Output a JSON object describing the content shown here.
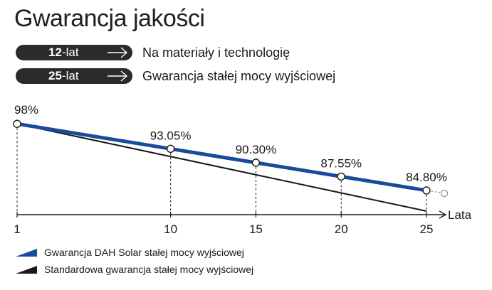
{
  "title": "Gwarancja jakości",
  "warranties": [
    {
      "years": "12",
      "suffix": "-lat",
      "description": "Na materiały i technologię"
    },
    {
      "years": "25",
      "suffix": "-lat",
      "description": "Gwarancja stałej mocy wyjściowej"
    }
  ],
  "colors": {
    "dah": "#1a4a9c",
    "standard": "#1a1a1a",
    "pill": "#2b2b2b"
  },
  "chart_data": {
    "type": "line",
    "xlabel": "Lata",
    "ylabel": "",
    "x_ticks": [
      1,
      10,
      15,
      20,
      25
    ],
    "xlim": [
      1,
      25
    ],
    "ylim": [
      80,
      100
    ],
    "series": [
      {
        "name": "Gwarancja DAH Solar stałej mocy wyjściowej",
        "x": [
          1,
          10,
          15,
          20,
          25
        ],
        "values": [
          98,
          93.05,
          90.3,
          87.55,
          84.8
        ],
        "point_labels": [
          "98%",
          "93.05%",
          "90.30%",
          "87.55%",
          "84.80%"
        ]
      },
      {
        "name": "Standardowa gwarancja stałej mocy wyjściowej",
        "x": [
          1,
          25
        ],
        "values": [
          98,
          80.7
        ]
      }
    ]
  },
  "legend": [
    {
      "label": "Gwarancja DAH Solar stałej mocy wyjściowej"
    },
    {
      "label": "Standardowa gwarancja stałej mocy wyjściowej"
    }
  ]
}
